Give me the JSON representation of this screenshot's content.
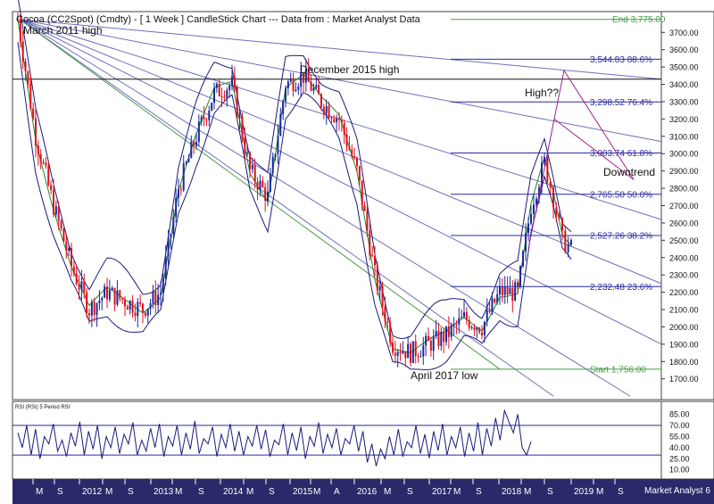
{
  "chart_data": [
    {
      "type": "candlestick",
      "title": "Cocoa (CC2Spot) (Cmdty) -   [ 1 Week ] CandleStick Chart --- Data from : Market Analyst Data",
      "ylim": [
        1580,
        3820
      ],
      "yticks": [
        1700,
        1800,
        1900,
        2000,
        2100,
        2200,
        2300,
        2400,
        2500,
        2600,
        2700,
        2800,
        2900,
        3000,
        3100,
        3200,
        3300,
        3400,
        3500,
        3600,
        3700
      ],
      "ytick_labels": [
        "1700.00",
        "1800.00",
        "1900.00",
        "2000.00",
        "2100.00",
        "2200.00",
        "2300.00",
        "2400.00",
        "2500.00",
        "2600.00",
        "2700.00",
        "2800.00",
        "2900.00",
        "3000.00",
        "3100.00",
        "3200.00",
        "3300.00",
        "3400.00",
        "3500.00",
        "3600.00",
        "3700.00"
      ],
      "series": [
        {
          "x": [
            0,
            20,
            40,
            60,
            80,
            100,
            120,
            140,
            160,
            180,
            200,
            220,
            240,
            260,
            280,
            300,
            320,
            340,
            360,
            380,
            400,
            420,
            440,
            460,
            480,
            500,
            520,
            540,
            560,
            575,
            590,
            600,
            610,
            620
          ],
          "values": [
            3775,
            3100,
            2700,
            2350,
            2100,
            2200,
            2150,
            2100,
            2200,
            2800,
            3100,
            3350,
            3400,
            2900,
            2750,
            3400,
            3450,
            3300,
            3200,
            2900,
            2300,
            1900,
            1850,
            1900,
            1950,
            2050,
            2000,
            2200,
            2200,
            2700,
            2950,
            2750,
            2500,
            2450
          ]
        }
      ],
      "annotations": {
        "march_2011": "March 2011 high",
        "december_2015": "December 2015 high",
        "april_2017": "April 2017 low",
        "high_q": "High??",
        "downtrend": "Downtrend"
      },
      "fibonacci": [
        {
          "label": "End 3,775.00",
          "value": 3775
        },
        {
          "label": "3,544.83 88.6%",
          "value": 3544.83
        },
        {
          "label": "3,298.52 76.4%",
          "value": 3298.52
        },
        {
          "label": "3,003.74 61.8%",
          "value": 3003.74
        },
        {
          "label": "2,765.50 50.0%",
          "value": 2765.5
        },
        {
          "label": "2,527.26 38.2%",
          "value": 2527.26
        },
        {
          "label": "2,232.48 23.6%",
          "value": 2232.48
        },
        {
          "label": "Start 1,756.00",
          "value": 1756
        }
      ],
      "colors": {
        "up": "#1a2a9a",
        "down": "#e0101a",
        "ma": "#1d8a2a",
        "band": "#1a1a7a",
        "fan": "#6e6ebd",
        "fan_green": "#4a9a4a",
        "fib": "#2a2aa0",
        "projection": "#a0208a",
        "axis_bg": "#2a2a6a"
      }
    },
    {
      "type": "line",
      "title": "RSI (RSI) 5 Period RSI",
      "ylim": [
        0,
        100
      ],
      "yticks": [
        10,
        25,
        40,
        55,
        70,
        85
      ],
      "ytick_labels": [
        "10.00",
        "25.00",
        "40.00",
        "55.00",
        "70.00",
        "85.00"
      ],
      "levels": [
        70,
        30
      ],
      "series": [
        {
          "values": [
            60,
            40,
            70,
            30,
            65,
            25,
            55,
            45,
            72,
            35,
            50,
            28,
            60,
            42,
            75,
            30,
            62,
            38,
            70,
            25,
            55,
            40,
            68,
            32,
            58,
            45,
            74,
            30,
            50,
            35,
            66,
            40,
            72,
            28,
            55,
            42,
            70,
            30,
            60,
            38,
            76,
            32,
            52,
            45,
            68,
            28,
            58,
            40,
            72,
            35,
            62,
            30,
            55,
            42,
            70,
            38,
            64,
            28,
            50,
            44,
            72,
            30,
            60,
            36,
            68,
            25,
            55,
            42,
            74,
            32,
            58,
            40,
            66,
            30,
            52,
            45,
            70,
            35,
            62,
            20,
            45,
            15,
            38,
            25,
            55,
            30,
            65,
            28,
            48,
            40,
            70,
            32,
            58,
            26,
            62,
            36,
            72,
            30,
            55,
            40,
            68,
            28,
            60,
            35,
            74,
            30,
            66,
            42,
            80,
            50,
            90,
            75,
            60,
            85,
            40,
            30,
            48
          ]
        }
      ]
    }
  ],
  "x_axis_labels": [
    "M",
    "S",
    "2012",
    "M",
    "S",
    "2013",
    "M",
    "S",
    "2014",
    "M",
    "S",
    "2015",
    "M",
    "A",
    "2016",
    "M",
    "S",
    "2017",
    "M",
    "S",
    "2018",
    "M",
    "S",
    "2019",
    "M",
    "S"
  ],
  "watermark": "Market Analyst 6"
}
